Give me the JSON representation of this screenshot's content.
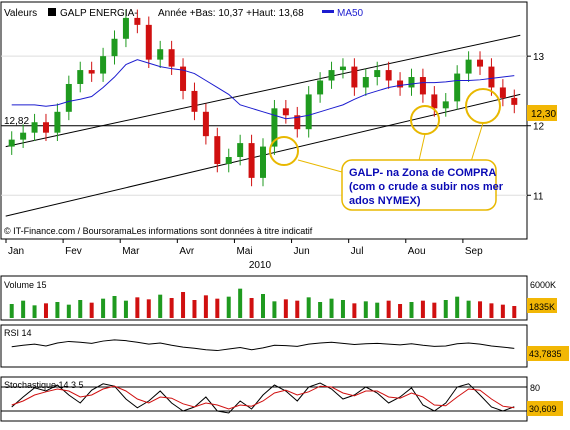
{
  "header": {
    "label": "Valeurs",
    "name": "GALP ENERGIA-",
    "stats": "Année +Bas: 10,37 +Haut: 13,68",
    "ma_label": "MA50"
  },
  "colors": {
    "up": "#1f9a1f",
    "down": "#d01010",
    "ma": "#1c1ccf",
    "trend": "#000000",
    "annot_circle": "#e8b800",
    "annot_border": "#e8b800",
    "annot_text": "#0a0ab5",
    "volume_up": "#1f9a1f",
    "volume_down": "#d01010",
    "rsi": "#000000",
    "stoch_k": "#000000",
    "stoch_d": "#d01010",
    "last_badge": "#f2b705"
  },
  "annotations": {
    "level_left": "12,82",
    "last_price": "12,30",
    "callout": "GALP- na Zona de COMPRA (com o crude a subir nos mercados NYMEX)",
    "copyright": "© IT-Finance.com / BoursoramaLes informations sont données à titre indicatif"
  },
  "chart_data": [
    {
      "type": "candlestick",
      "title": "GALP ENERGIA-",
      "year": "2010",
      "x_ticks": [
        "Jan",
        "Fev",
        "Mar",
        "Avr",
        "Mai",
        "Jun",
        "Jul",
        "Aou",
        "Sep"
      ],
      "y_ticks": [
        11,
        12,
        13
      ],
      "ylim": [
        10.4,
        13.75
      ],
      "grid": true,
      "support_level": 12.0,
      "ma50": [
        12.3,
        12.3,
        12.3,
        12.28,
        12.3,
        12.35,
        12.38,
        12.42,
        12.55,
        12.7,
        12.88,
        12.95,
        12.9,
        12.85,
        12.82,
        12.8,
        12.75,
        12.65,
        12.55,
        12.45,
        12.3,
        12.25,
        12.2,
        12.15,
        12.1,
        12.12,
        12.15,
        12.2,
        12.25,
        12.3,
        12.38,
        12.45,
        12.5,
        12.55,
        12.58,
        12.6,
        12.62,
        12.62,
        12.63,
        12.65,
        12.65,
        12.66,
        12.68,
        12.7,
        12.72
      ],
      "close": [
        11.8,
        11.9,
        12.05,
        11.9,
        12.2,
        12.6,
        12.8,
        12.75,
        13.0,
        13.25,
        13.55,
        13.45,
        12.95,
        13.1,
        12.85,
        12.5,
        12.2,
        11.85,
        11.45,
        11.55,
        11.75,
        11.25,
        11.7,
        12.25,
        12.15,
        11.95,
        12.45,
        12.65,
        12.8,
        12.85,
        12.55,
        12.7,
        12.8,
        12.65,
        12.55,
        12.7,
        12.45,
        12.25,
        12.35,
        12.75,
        12.95,
        12.85,
        12.55,
        12.4,
        12.3
      ],
      "trendlines": [
        {
          "start_pos": 0,
          "start_value": 11.7,
          "end_pos": 44,
          "end_value": 13.3
        },
        {
          "start_pos": 0,
          "start_value": 10.7,
          "end_pos": 44,
          "end_value": 12.45
        }
      ]
    },
    {
      "type": "bar",
      "title": "Volume 15",
      "y_ticks_label": "6000K",
      "last_value": "1835K",
      "values": [
        2.1,
        2.6,
        1.9,
        2.2,
        2.4,
        2.0,
        2.7,
        2.3,
        2.9,
        3.3,
        2.6,
        3.1,
        2.8,
        3.5,
        3.0,
        3.9,
        2.7,
        3.4,
        2.9,
        3.2,
        4.4,
        3.0,
        3.6,
        2.5,
        2.8,
        2.6,
        3.1,
        2.4,
        2.9,
        2.7,
        2.2,
        2.5,
        2.3,
        2.6,
        2.1,
        2.4,
        2.6,
        2.3,
        2.7,
        3.2,
        2.6,
        2.5,
        2.2,
        2.0,
        1.8
      ]
    },
    {
      "type": "line",
      "title": "RSI 14",
      "last_value": "43,7835",
      "ylim": [
        0,
        100
      ],
      "values": [
        48,
        52,
        55,
        50,
        58,
        62,
        60,
        57,
        63,
        66,
        64,
        60,
        55,
        58,
        52,
        47,
        44,
        40,
        38,
        42,
        46,
        40,
        45,
        52,
        51,
        49,
        55,
        58,
        60,
        57,
        54,
        56,
        57,
        55,
        53,
        56,
        52,
        49,
        50,
        56,
        58,
        55,
        50,
        47,
        43.8
      ]
    },
    {
      "type": "line",
      "title": "Stochastique 14 3 5",
      "last_value": "30,609",
      "ylim": [
        0,
        100
      ],
      "ref_levels": [
        80,
        20
      ],
      "ref_labels": [
        "80",
        "20"
      ],
      "k": [
        30,
        55,
        78,
        70,
        85,
        60,
        40,
        72,
        88,
        82,
        50,
        28,
        45,
        70,
        40,
        20,
        30,
        55,
        20,
        15,
        45,
        25,
        60,
        85,
        70,
        45,
        80,
        90,
        75,
        50,
        60,
        80,
        65,
        40,
        55,
        78,
        35,
        20,
        40,
        80,
        88,
        60,
        30,
        20,
        30.6
      ],
      "d": [
        35,
        45,
        60,
        68,
        75,
        70,
        55,
        60,
        75,
        82,
        70,
        50,
        40,
        55,
        52,
        38,
        30,
        40,
        35,
        25,
        35,
        32,
        45,
        65,
        72,
        60,
        68,
        82,
        80,
        65,
        58,
        70,
        70,
        55,
        52,
        65,
        55,
        35,
        33,
        55,
        75,
        72,
        50,
        32,
        28
      ]
    }
  ]
}
